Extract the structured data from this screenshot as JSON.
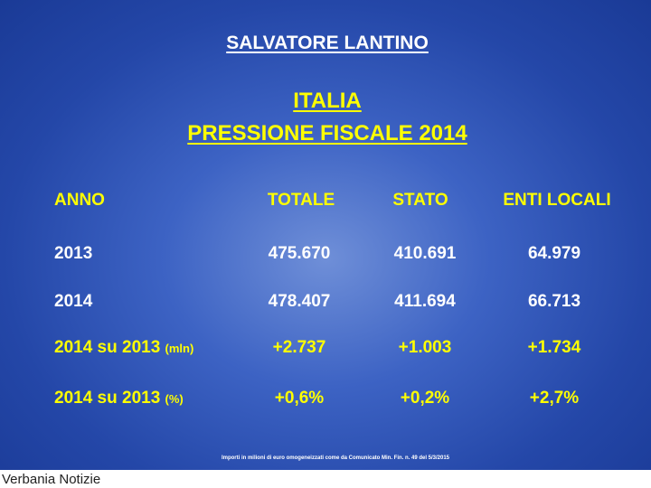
{
  "author": "SALVATORE LANTINO",
  "title": {
    "line1": "ITALIA",
    "line2": "PRESSIONE FISCALE 2014"
  },
  "table": {
    "header": [
      "ANNO",
      "TOTALE",
      "STATO",
      "ENTI LOCALI"
    ],
    "rows": [
      {
        "label": "2013",
        "values": [
          "475.670",
          "410.691",
          "64.979"
        ]
      },
      {
        "label": "2014",
        "values": [
          "478.407",
          "411.694",
          "66.713"
        ]
      },
      {
        "label": "2014 su 2013",
        "unit": "(mln)",
        "values": [
          "+2.737",
          "+1.003",
          "+1.734"
        ]
      },
      {
        "label": "2014 su 2013",
        "unit": "(%)",
        "values": [
          "+0,6%",
          "+0,2%",
          "+2,7%"
        ]
      }
    ]
  },
  "footnote": "Importi in milioni di euro omogeneizzati come da Comunicato Min. Fin. n. 49 del 5/3/2015",
  "watermark": "Verbania Notizie"
}
